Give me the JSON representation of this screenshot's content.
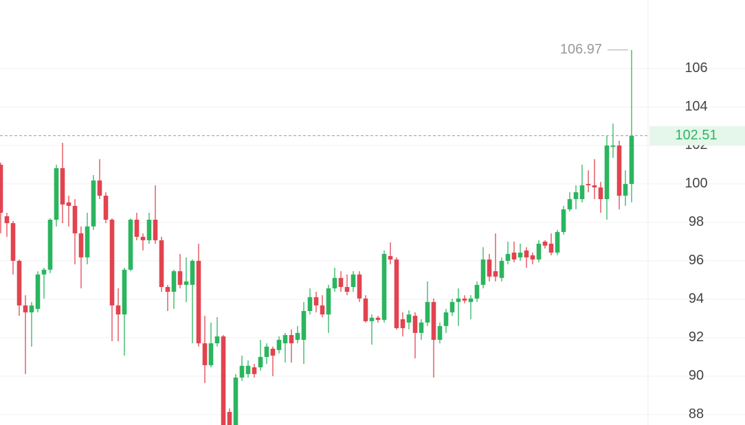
{
  "chart_data": {
    "type": "candlestick",
    "open": [
      101.0,
      98.32,
      97.96,
      96.0,
      93.68,
      93.32,
      93.5,
      95.29,
      95.54,
      98.14,
      100.82,
      99.04,
      98.86,
      97.43,
      96.18,
      97.79,
      100.18,
      99.39,
      98.14,
      93.68,
      93.21,
      95.54,
      98.14,
      97.25,
      97.07,
      98.14,
      97.07,
      94.64,
      94.39,
      95.46,
      94.75,
      94.75,
      96.0,
      91.71,
      90.57,
      91.71,
      92.07,
      88.14,
      87.46,
      89.93,
      90.11,
      90.46,
      90.46,
      91.0,
      91.43,
      91.36,
      91.71,
      92.14,
      91.89,
      91.89,
      93.39,
      94.11,
      93.68,
      93.21,
      94.57,
      95.11,
      94.64,
      94.64,
      95.29,
      94.04,
      92.86,
      93.04,
      92.93,
      96.25,
      96.07,
      92.96,
      92.79,
      93.14,
      92.25,
      92.79,
      93.86,
      91.89,
      92.61,
      93.32,
      93.86,
      94.04,
      93.86,
      94.04,
      94.75,
      96.07,
      95.46,
      95.11,
      96.0,
      96.43,
      96.18,
      96.54,
      96.29,
      96.07,
      97.0,
      96.89,
      96.43,
      97.5,
      98.68,
      99.21,
      99.21,
      100.0,
      99.93,
      99.82,
      99.21,
      101.93,
      102.0,
      99.39,
      100.0
    ],
    "high": [
      101.11,
      98.5,
      98.07,
      96.07,
      94.21,
      93.86,
      95.46,
      95.64,
      98.21,
      101.0,
      102.14,
      99.39,
      99.21,
      97.79,
      98.5,
      100.46,
      101.29,
      99.57,
      98.21,
      94.57,
      95.64,
      98.21,
      98.5,
      97.43,
      98.5,
      99.93,
      97.25,
      94.75,
      95.54,
      96.36,
      96.18,
      96.07,
      96.89,
      93.14,
      92.79,
      93.07,
      92.14,
      88.32,
      90.11,
      91.07,
      90.82,
      90.64,
      91.89,
      91.71,
      91.54,
      92.07,
      92.25,
      92.43,
      92.61,
      93.86,
      94.57,
      94.39,
      94.21,
      94.75,
      95.64,
      95.46,
      95.29,
      95.46,
      95.46,
      94.21,
      93.21,
      93.14,
      96.54,
      96.96,
      96.18,
      93.32,
      93.43,
      93.32,
      92.96,
      94.93,
      94.04,
      92.79,
      93.5,
      94.04,
      94.57,
      94.21,
      94.21,
      94.93,
      96.71,
      96.36,
      97.43,
      96.18,
      97.0,
      97.0,
      96.89,
      96.71,
      96.43,
      97.07,
      97.07,
      97.43,
      97.61,
      98.86,
      99.57,
      99.93,
      101.0,
      100.71,
      101.29,
      100.11,
      102.5,
      103.14,
      102.25,
      100.71,
      106.97
    ],
    "low": [
      97.43,
      97.25,
      95.29,
      93.14,
      90.11,
      91.54,
      93.32,
      94.04,
      95.36,
      97.79,
      97.96,
      97.79,
      95.82,
      94.57,
      95.82,
      97.61,
      99.21,
      97.96,
      91.82,
      91.82,
      91.07,
      95.46,
      97.07,
      96.54,
      96.89,
      96.89,
      94.39,
      93.39,
      93.5,
      94.57,
      93.86,
      91.71,
      91.54,
      89.64,
      90.46,
      91.54,
      87.46,
      87.46,
      87.36,
      89.75,
      89.93,
      89.93,
      90.29,
      90.64,
      90.0,
      91.18,
      90.71,
      90.71,
      91.71,
      90.64,
      93.21,
      93.32,
      93.07,
      92.25,
      94.39,
      94.39,
      94.21,
      94.39,
      93.86,
      92.79,
      91.64,
      92.79,
      92.79,
      95.82,
      92.43,
      92.07,
      92.43,
      90.93,
      91.89,
      92.61,
      89.93,
      91.71,
      92.25,
      93.14,
      92.61,
      93.79,
      92.96,
      93.86,
      94.57,
      94.93,
      94.93,
      94.93,
      95.82,
      95.93,
      96.0,
      95.64,
      95.82,
      95.93,
      96.64,
      96.29,
      96.29,
      97.36,
      98.57,
      98.68,
      99.04,
      99.57,
      99.21,
      98.5,
      98.14,
      101.36,
      98.68,
      98.86,
      99.04
    ],
    "close": [
      98.5,
      97.96,
      96.0,
      93.68,
      93.32,
      93.68,
      95.29,
      95.54,
      98.14,
      100.82,
      98.93,
      98.86,
      97.43,
      96.18,
      97.79,
      100.18,
      99.39,
      98.14,
      93.68,
      93.21,
      95.54,
      98.14,
      97.25,
      97.07,
      98.14,
      97.07,
      94.64,
      94.39,
      95.46,
      94.75,
      94.93,
      96.0,
      91.71,
      90.57,
      91.71,
      92.07,
      87.46,
      87.46,
      89.93,
      90.54,
      90.54,
      90.11,
      91.0,
      91.54,
      91.07,
      91.89,
      92.14,
      91.71,
      92.25,
      93.39,
      94.11,
      93.68,
      93.21,
      94.57,
      95.11,
      94.64,
      94.39,
      95.29,
      94.04,
      92.86,
      93.04,
      92.93,
      96.36,
      96.07,
      92.5,
      92.5,
      93.21,
      92.25,
      92.79,
      93.86,
      91.89,
      92.61,
      93.32,
      93.86,
      94.04,
      93.93,
      94.04,
      94.75,
      96.07,
      95.18,
      95.18,
      96.0,
      96.36,
      96.07,
      96.43,
      96.18,
      96.07,
      96.89,
      96.79,
      96.43,
      97.5,
      98.68,
      99.21,
      99.57,
      99.93,
      99.93,
      99.82,
      99.21,
      102.0,
      102.0,
      99.39,
      100.0,
      102.51
    ],
    "ylim": [
      87.46,
      109.57
    ],
    "yticks": [
      88,
      90,
      92,
      94,
      96,
      98,
      100,
      102,
      104,
      106
    ],
    "grid": true,
    "up_color": "#2bb55f",
    "down_color": "#e2434f",
    "high_label": 106.97,
    "last_price": 102.51
  }
}
